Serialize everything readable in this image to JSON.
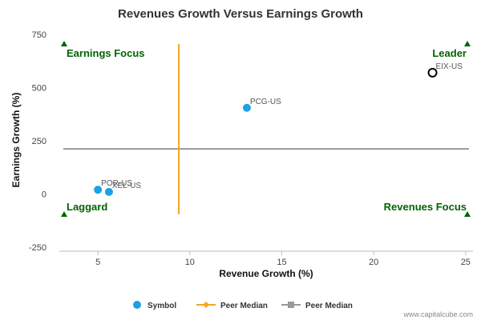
{
  "chart_data": {
    "type": "scatter",
    "title": "Revenues Growth Versus Earnings Growth",
    "xlabel": "Revenue Growth (%)",
    "ylabel": "Earnings Growth (%)",
    "xlim": [
      2.9,
      25.4
    ],
    "ylim": [
      -250,
      750
    ],
    "x_ticks": [
      5,
      10,
      15,
      20,
      25
    ],
    "y_ticks": [
      -250,
      0,
      250,
      500,
      750
    ],
    "points": [
      {
        "label": "POR-US",
        "x": 5.0,
        "y": 20,
        "highlight": false
      },
      {
        "label": "XEL-US",
        "x": 5.6,
        "y": 10,
        "highlight": false
      },
      {
        "label": "PCG-US",
        "x": 13.1,
        "y": 405,
        "highlight": false
      },
      {
        "label": "EIX-US",
        "x": 23.2,
        "y": 570,
        "highlight": true
      }
    ],
    "peer_median_x": 9.4,
    "peer_median_x_range": [
      -95,
      705
    ],
    "peer_median_y": 212,
    "quadrants": {
      "top_left": "Earnings Focus",
      "top_right": "Leader",
      "bottom_left": "Laggard",
      "bottom_right": "Revenues Focus"
    },
    "legend": {
      "symbol": "Symbol",
      "peer_median_1": "Peer Median",
      "peer_median_2": "Peer Median"
    },
    "grid": false,
    "legend_position": "bottom-center",
    "credit": "www.capitalcube.com",
    "colors": {
      "points": "#1fa0e6",
      "highlight_stroke": "#000000",
      "peer_median_x_line": "#f5a623",
      "peer_median_y_line": "#999999",
      "quadrant_text": "#006400",
      "quadrant_marker": "#006400",
      "axis": "#bbbbbb"
    }
  }
}
